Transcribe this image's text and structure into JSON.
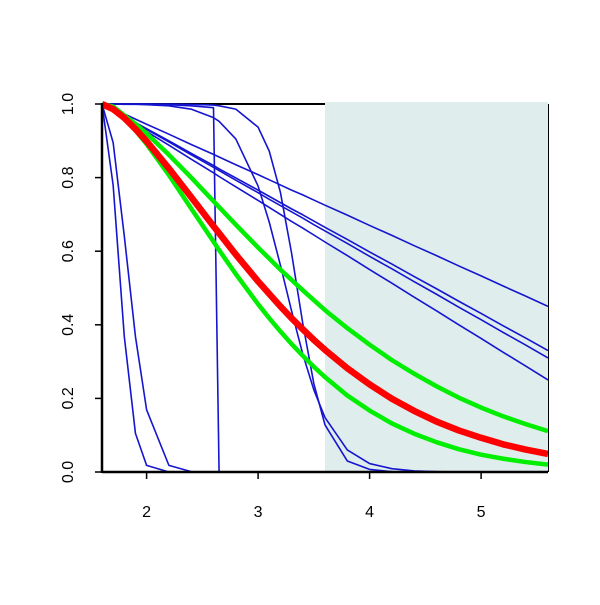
{
  "chart_data": {
    "type": "line",
    "x": [
      1.6,
      1.7,
      1.8,
      1.9,
      2.0,
      2.2,
      2.4,
      2.6,
      2.65,
      2.8,
      3.0,
      3.1,
      3.2,
      3.3,
      3.4,
      3.5,
      3.6,
      3.8,
      4.0,
      4.2,
      4.4,
      4.6,
      4.8,
      5.0,
      5.2,
      5.4,
      5.6
    ],
    "xlim": [
      1.6,
      5.6
    ],
    "ylim": [
      0,
      1
    ],
    "xticks": [
      2,
      3,
      4,
      5
    ],
    "yticks": [
      {
        "value": 0,
        "label": "0.0"
      },
      0.2,
      0.4,
      0.6,
      0.8,
      {
        "value": 1,
        "label": "1.0"
      }
    ],
    "shaded_x": [
      3.6,
      5.6
    ],
    "shade_color": "#dfeded",
    "series": [
      {
        "color": "#1515d0",
        "width": 1.6,
        "values": [
          1,
          0.986,
          0.973,
          0.959,
          0.945,
          0.918,
          0.89,
          0.863,
          0.856,
          0.835,
          0.808,
          0.794,
          0.78,
          0.766,
          0.753,
          0.739,
          0.725,
          0.698,
          0.67,
          0.643,
          0.615,
          0.588,
          0.56,
          0.533,
          0.505,
          0.478,
          0.45
        ]
      },
      {
        "color": "#1515d0",
        "width": 1.6,
        "values": [
          1,
          0.983,
          0.967,
          0.95,
          0.933,
          0.9,
          0.866,
          0.833,
          0.824,
          0.799,
          0.766,
          0.749,
          0.732,
          0.715,
          0.699,
          0.682,
          0.665,
          0.632,
          0.598,
          0.565,
          0.531,
          0.498,
          0.464,
          0.431,
          0.397,
          0.364,
          0.33
        ]
      },
      {
        "color": "#1515d0",
        "width": 1.6,
        "values": [
          1,
          0.983,
          0.966,
          0.948,
          0.931,
          0.897,
          0.862,
          0.828,
          0.819,
          0.793,
          0.759,
          0.741,
          0.724,
          0.707,
          0.69,
          0.672,
          0.655,
          0.621,
          0.586,
          0.552,
          0.517,
          0.483,
          0.448,
          0.414,
          0.379,
          0.345,
          0.31
        ]
      },
      {
        "color": "#1515d0",
        "width": 1.6,
        "values": [
          1,
          0.981,
          0.963,
          0.944,
          0.925,
          0.888,
          0.85,
          0.813,
          0.803,
          0.775,
          0.738,
          0.719,
          0.7,
          0.681,
          0.663,
          0.644,
          0.625,
          0.588,
          0.55,
          0.513,
          0.475,
          0.438,
          0.4,
          0.363,
          0.325,
          0.288,
          0.25
        ]
      },
      {
        "color": "#1515d0",
        "width": 1.6,
        "values": [
          1,
          0.779,
          0.368,
          0.105,
          0.018,
          0,
          0,
          0,
          0,
          0,
          0,
          0,
          0,
          0,
          0,
          0,
          0,
          0,
          0,
          0,
          0,
          0,
          0,
          0,
          0,
          0,
          0
        ]
      },
      {
        "color": "#1515d0",
        "width": 1.6,
        "values": [
          1,
          0.895,
          0.641,
          0.368,
          0.169,
          0.018,
          0.001,
          0,
          0,
          0,
          0,
          0,
          0,
          0,
          0,
          0,
          0,
          0,
          0,
          0,
          0,
          0,
          0,
          0,
          0,
          0,
          0
        ]
      },
      {
        "color": "#1515d0",
        "width": 1.6,
        "values": [
          1,
          1,
          1,
          1,
          1,
          0.998,
          0.995,
          0.99,
          0,
          0,
          0,
          0,
          0,
          0,
          0,
          0,
          0,
          0,
          0,
          0,
          0,
          0,
          0,
          0,
          0,
          0,
          0
        ]
      },
      {
        "color": "#1515d0",
        "width": 1.6,
        "values": [
          1,
          1,
          0.999,
          0.999,
          0.998,
          0.995,
          0.986,
          0.963,
          0.953,
          0.905,
          0.777,
          0.679,
          0.562,
          0.438,
          0.321,
          0.223,
          0.148,
          0.06,
          0.023,
          0.009,
          0.003,
          0.001,
          0,
          0,
          0,
          0,
          0
        ]
      },
      {
        "color": "#1515d0",
        "width": 1.6,
        "values": [
          1,
          1,
          1,
          1,
          1,
          1,
          0.999,
          0.997,
          0.995,
          0.986,
          0.937,
          0.872,
          0.76,
          0.595,
          0.405,
          0.24,
          0.128,
          0.03,
          0.007,
          0.001,
          0,
          0,
          0,
          0,
          0,
          0,
          0
        ]
      },
      {
        "color": "#00ee00",
        "width": 4.5,
        "values": [
          1,
          0.993,
          0.969,
          0.946,
          0.92,
          0.862,
          0.8,
          0.736,
          0.72,
          0.672,
          0.61,
          0.58,
          0.55,
          0.522,
          0.494,
          0.467,
          0.44,
          0.391,
          0.346,
          0.304,
          0.267,
          0.233,
          0.202,
          0.175,
          0.151,
          0.13,
          0.111
        ]
      },
      {
        "color": "#00ee00",
        "width": 4.5,
        "values": [
          1,
          0.986,
          0.961,
          0.928,
          0.891,
          0.807,
          0.716,
          0.626,
          0.603,
          0.538,
          0.456,
          0.418,
          0.382,
          0.348,
          0.316,
          0.286,
          0.258,
          0.208,
          0.167,
          0.132,
          0.104,
          0.081,
          0.062,
          0.047,
          0.036,
          0.027,
          0.02
        ]
      },
      {
        "color": "#ff0000",
        "width": 6.5,
        "values": [
          1,
          0.986,
          0.962,
          0.932,
          0.899,
          0.825,
          0.747,
          0.668,
          0.649,
          0.591,
          0.518,
          0.484,
          0.45,
          0.418,
          0.388,
          0.359,
          0.332,
          0.282,
          0.238,
          0.199,
          0.166,
          0.137,
          0.113,
          0.093,
          0.075,
          0.061,
          0.049
        ]
      }
    ]
  }
}
